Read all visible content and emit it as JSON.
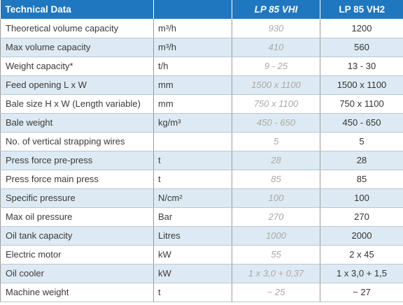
{
  "header": {
    "parameter": "Technical Data",
    "unit": "",
    "model_vhi": "LP 85 VHI",
    "model_vh2": "LP 85 VH2"
  },
  "rows": [
    {
      "parameter": "Theoretical volume capacity",
      "unit": "m³/h",
      "vhi": "930",
      "vh2": "1200"
    },
    {
      "parameter": "Max volume capacity",
      "unit": "m³/h",
      "vhi": "410",
      "vh2": "560"
    },
    {
      "parameter": "Weight capacity*",
      "unit": "t/h",
      "vhi": "9 - 25",
      "vh2": "13 - 30"
    },
    {
      "parameter": "Feed opening L x W",
      "unit": "mm",
      "vhi": "1500 x 1100",
      "vh2": "1500 x 1100"
    },
    {
      "parameter": "Bale size H x W (Length variable)",
      "unit": "mm",
      "vhi": "750 x 1100",
      "vh2": "750 x 1100"
    },
    {
      "parameter": "Bale weight",
      "unit": "kg/m³",
      "vhi": "450 - 650",
      "vh2": "450 - 650"
    },
    {
      "parameter": "No. of vertical strapping wires",
      "unit": "",
      "vhi": "5",
      "vh2": "5"
    },
    {
      "parameter": "Press force pre-press",
      "unit": "t",
      "vhi": "28",
      "vh2": "28"
    },
    {
      "parameter": "Press force main press",
      "unit": "t",
      "vhi": "85",
      "vh2": "85"
    },
    {
      "parameter": "Specific pressure",
      "unit": "N/cm²",
      "vhi": "100",
      "vh2": "100"
    },
    {
      "parameter": "Max oil pressure",
      "unit": "Bar",
      "vhi": "270",
      "vh2": "270"
    },
    {
      "parameter": "Oil tank capacity",
      "unit": "Litres",
      "vhi": "1000",
      "vh2": "2000"
    },
    {
      "parameter": "Electric motor",
      "unit": "kW",
      "vhi": "55",
      "vh2": "2 x 45"
    },
    {
      "parameter": "Oil cooler",
      "unit": "kW",
      "vhi": "1 x 3,0 + 0,37",
      "vh2": "1 x 3,0 + 1,5"
    },
    {
      "parameter": "Machine weight",
      "unit": "t",
      "vhi": "~ 25",
      "vh2": "~ 27"
    }
  ],
  "colors": {
    "header_bg": "#1f77bf",
    "row_alt_bg": "#ddeaf3",
    "vhi_text": "#a9a9a9"
  }
}
